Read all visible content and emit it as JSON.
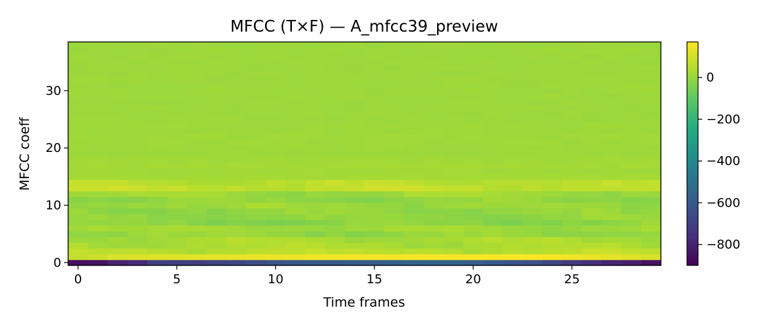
{
  "chart_data": {
    "type": "heatmap",
    "title": "MFCC (T×F) — A_mfcc39_preview",
    "xlabel": "Time frames",
    "ylabel": "MFCC coeff",
    "n_frames": 30,
    "n_coeffs": 39,
    "xlim": [
      -0.5,
      29.5
    ],
    "ylim": [
      -0.5,
      38.5
    ],
    "x_ticks": [
      0,
      5,
      10,
      15,
      20,
      25
    ],
    "y_ticks": [
      0,
      10,
      20,
      30
    ],
    "colormap": "viridis",
    "colorbar": {
      "vmin": -900,
      "vmax": 170,
      "ticks": [
        0,
        -200,
        -400,
        -600,
        -800
      ],
      "tick_labels": [
        "0",
        "−200",
        "−400",
        "−600",
        "−800"
      ]
    },
    "coeff0_values": [
      -860,
      -850,
      -800,
      -780,
      -700,
      -700,
      -700,
      -690,
      -680,
      -650,
      -630,
      -610,
      -600,
      -600,
      -590,
      -590,
      -570,
      -560,
      -560,
      -560,
      -580,
      -600,
      -620,
      -640,
      -680,
      -720,
      -760,
      -790,
      -810,
      -850
    ],
    "coeff1_values": [
      75,
      90,
      110,
      115,
      120,
      125,
      130,
      130,
      135,
      140,
      140,
      145,
      150,
      150,
      155,
      155,
      155,
      160,
      160,
      160,
      165,
      170,
      170,
      165,
      160,
      150,
      140,
      130,
      120,
      110
    ],
    "row_baseline": [
      -860,
      100,
      55,
      35,
      30,
      -5,
      15,
      -20,
      -10,
      -10,
      5,
      -10,
      10,
      70,
      60,
      20,
      15,
      20,
      15,
      10,
      10,
      12,
      12,
      10,
      10,
      8,
      8,
      8,
      8,
      8,
      8,
      8,
      8,
      8,
      8,
      8,
      8,
      8,
      8
    ],
    "background_level": 10
  }
}
